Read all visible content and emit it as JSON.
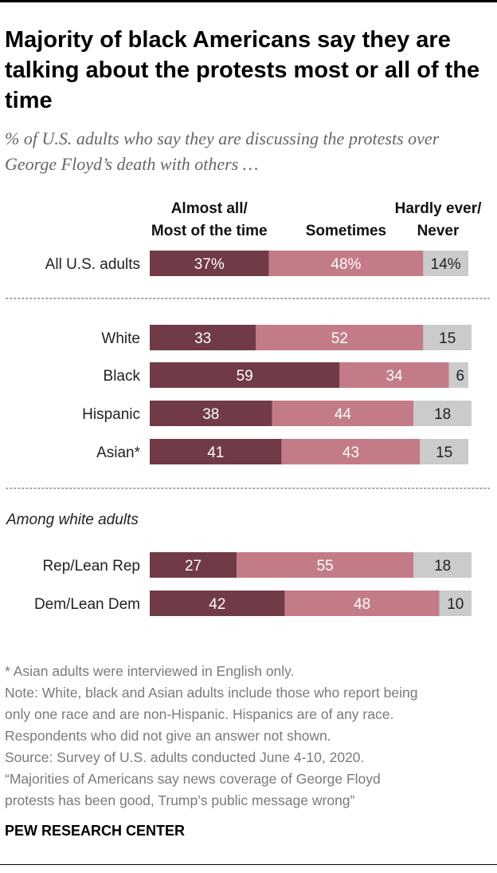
{
  "title": "Majority of black Americans say they are talking about the protests most or all of the time",
  "subtitle": "% of U.S. adults who say they are discussing the protests over George Floyd’s death with others …",
  "colors": {
    "most": "#713a47",
    "sometimes": "#c37c87",
    "never": "#cbcbcb",
    "separator": "#a6a6a6"
  },
  "chart_data": {
    "type": "bar",
    "orientation": "horizontal",
    "stacked": true,
    "xlim": [
      0,
      100
    ],
    "legend": [
      {
        "key": "most",
        "label_lines": [
          "Almost all/",
          "Most of the time"
        ]
      },
      {
        "key": "sometimes",
        "label_lines": [
          "Sometimes"
        ]
      },
      {
        "key": "never",
        "label_lines": [
          "Hardly ever/",
          "Never"
        ]
      }
    ],
    "section_label": "Among white adults",
    "rows": [
      {
        "label": "All U.S. adults",
        "values": [
          37,
          48,
          14
        ],
        "value_labels": [
          "37%",
          "48%",
          "14%"
        ]
      },
      {
        "label": "White",
        "values": [
          33,
          52,
          15
        ],
        "value_labels": [
          "33",
          "52",
          "15"
        ]
      },
      {
        "label": "Black",
        "values": [
          59,
          34,
          6
        ],
        "value_labels": [
          "59",
          "34",
          "6"
        ]
      },
      {
        "label": "Hispanic",
        "values": [
          38,
          44,
          18
        ],
        "value_labels": [
          "38",
          "44",
          "18"
        ]
      },
      {
        "label": "Asian*",
        "values": [
          41,
          43,
          15
        ],
        "value_labels": [
          "41",
          "43",
          "15"
        ]
      },
      {
        "label": "Rep/Lean Rep",
        "values": [
          27,
          55,
          18
        ],
        "value_labels": [
          "27",
          "55",
          "18"
        ]
      },
      {
        "label": "Dem/Lean Dem",
        "values": [
          42,
          48,
          10
        ],
        "value_labels": [
          "42",
          "48",
          "10"
        ]
      }
    ]
  },
  "notes": [
    "* Asian adults were interviewed in English only.",
    "Note: White, black and Asian adults include those who report being",
    "only one race and are non-Hispanic. Hispanics are of any race.",
    "Respondents who did not give an answer not shown.",
    "Source: Survey of U.S. adults conducted June 4-10, 2020.",
    "“Majorities of Americans say news coverage of George Floyd",
    "protests has been good, Trump’s public message wrong”"
  ],
  "brand": "PEW RESEARCH CENTER"
}
